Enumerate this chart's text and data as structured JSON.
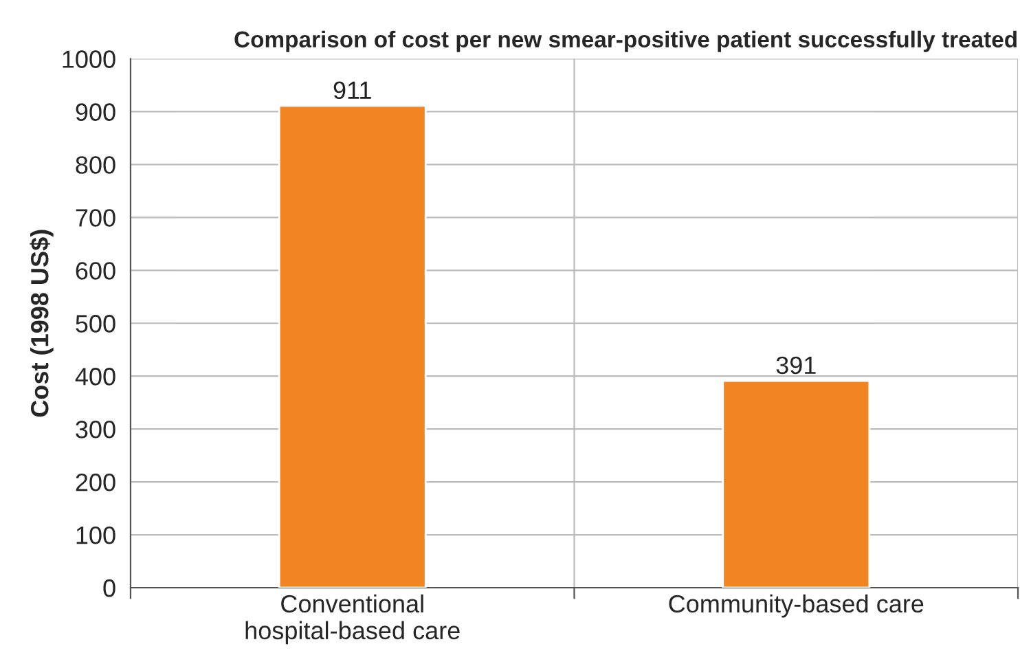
{
  "chart_data": {
    "type": "bar",
    "title": "Comparison of cost per new smear-positive patient successfully treated",
    "ylabel": "Cost (1998 US$)",
    "categories": [
      "Conventional\nhospital-based care",
      "Community-based care"
    ],
    "values": [
      911,
      391
    ],
    "color": "#f28522",
    "ylim": [
      0,
      1000
    ],
    "yticks": [
      0,
      100,
      200,
      300,
      400,
      500,
      600,
      700,
      800,
      900,
      1000
    ],
    "grid": true,
    "data_labels": true
  }
}
